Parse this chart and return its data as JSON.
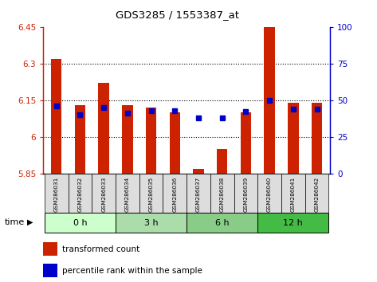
{
  "title": "GDS3285 / 1553387_at",
  "samples": [
    "GSM286031",
    "GSM286032",
    "GSM286033",
    "GSM286034",
    "GSM286035",
    "GSM286036",
    "GSM286037",
    "GSM286038",
    "GSM286039",
    "GSM286040",
    "GSM286041",
    "GSM286042"
  ],
  "red_values": [
    6.32,
    6.13,
    6.22,
    6.13,
    6.12,
    6.1,
    5.87,
    5.95,
    6.1,
    6.45,
    6.14,
    6.14
  ],
  "blue_values": [
    46,
    40,
    45,
    41,
    43,
    43,
    38,
    38,
    42,
    50,
    44,
    44
  ],
  "ylim_left": [
    5.85,
    6.45
  ],
  "ylim_right": [
    0,
    100
  ],
  "yticks_left": [
    5.85,
    6.0,
    6.15,
    6.3,
    6.45
  ],
  "yticks_right": [
    0,
    25,
    50,
    75,
    100
  ],
  "ytick_labels_left": [
    "5.85",
    "6",
    "6.15",
    "6.3",
    "6.45"
  ],
  "ytick_labels_right": [
    "0",
    "25",
    "50",
    "75",
    "100"
  ],
  "groups": [
    {
      "label": "0 h",
      "start": 0,
      "end": 3
    },
    {
      "label": "3 h",
      "start": 3,
      "end": 6
    },
    {
      "label": "6 h",
      "start": 6,
      "end": 9
    },
    {
      "label": "12 h",
      "start": 9,
      "end": 12
    }
  ],
  "group_colors": [
    "#ccffcc",
    "#aaddaa",
    "#88cc88",
    "#44bb44"
  ],
  "red_color": "#cc2200",
  "blue_color": "#0000cc",
  "bar_width": 0.45,
  "blue_marker_size": 5,
  "sample_box_color": "#dddddd",
  "legend_red": "transformed count",
  "legend_blue": "percentile rank within the sample",
  "time_label": "time",
  "base_value": 5.85,
  "grid_yticks": [
    6.0,
    6.15,
    6.3
  ]
}
